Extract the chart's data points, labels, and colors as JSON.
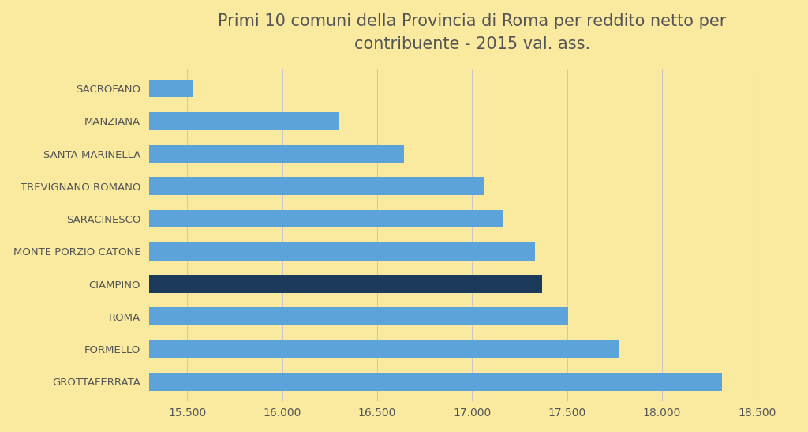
{
  "title_line1": "Primi 10 comuni della Provincia di Roma per reddito netto per",
  "title_line2": "contribuente - 2015 val. ass.",
  "categories": [
    "GROTTAFERRATA",
    "FORMELLO",
    "ROMA",
    "CIAMPINO",
    "MONTE PORZIO CATONE",
    "SARACINESCO",
    "TREVIGNANO ROMANO",
    "SANTA MARINELLA",
    "MANZIANA",
    "SACROFANO"
  ],
  "values": [
    18316,
    17776,
    17504,
    17370,
    17330,
    17160,
    17060,
    16640,
    16300,
    15530
  ],
  "bar_colors": [
    "#5ba3d9",
    "#5ba3d9",
    "#5ba3d9",
    "#1b3a5c",
    "#5ba3d9",
    "#5ba3d9",
    "#5ba3d9",
    "#5ba3d9",
    "#5ba3d9",
    "#5ba3d9"
  ],
  "background_color": "#faeaa0",
  "xlim_start": 15300,
  "xlim_end": 18700,
  "xticks": [
    15500,
    16000,
    16500,
    17000,
    17500,
    18000,
    18500
  ],
  "xtick_labels": [
    "15.500",
    "16.000",
    "16.500",
    "17.000",
    "17.500",
    "18.000",
    "18.500"
  ],
  "text_color": "#555555",
  "grid_color": "#c8c8c8",
  "title_fontsize": 15,
  "tick_fontsize": 10,
  "label_fontsize": 9.5,
  "bar_height": 0.55
}
